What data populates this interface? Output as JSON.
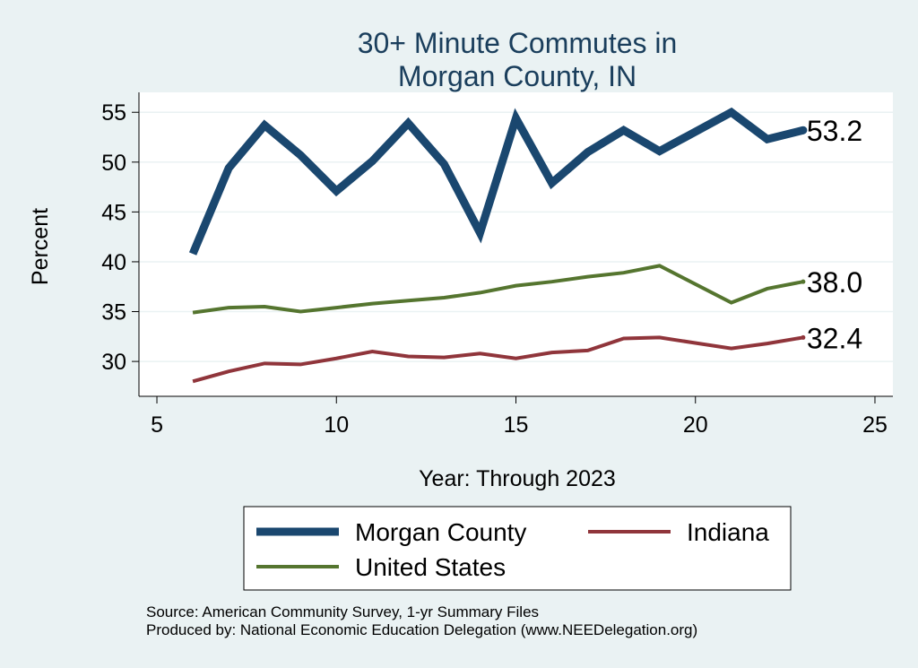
{
  "chart_data": {
    "type": "line",
    "title_lines": [
      "30+ Minute Commutes in",
      "Morgan County, IN"
    ],
    "xlabel": "Year: Through 2023",
    "ylabel": "Percent",
    "xlim": [
      4.5,
      25.5
    ],
    "ylim": [
      26.5,
      57
    ],
    "xticks": [
      5,
      10,
      15,
      20,
      25
    ],
    "yticks": [
      30,
      35,
      40,
      45,
      50,
      55
    ],
    "grid": true,
    "legend_position": "bottom",
    "series": [
      {
        "name": "Morgan County",
        "color": "#1a476f",
        "x": [
          6,
          7,
          8,
          9,
          10,
          11,
          12,
          13,
          14,
          15,
          16,
          17,
          18,
          19,
          21,
          22,
          23
        ],
        "y": [
          40.8,
          49.4,
          53.7,
          50.7,
          47.1,
          50.1,
          53.9,
          49.8,
          42.9,
          54.4,
          47.9,
          51.0,
          53.2,
          51.1,
          55.0,
          52.3,
          53.2
        ],
        "end_label": "53.2"
      },
      {
        "name": "Indiana",
        "color": "#90353b",
        "x": [
          6,
          7,
          8,
          9,
          10,
          11,
          12,
          13,
          14,
          15,
          16,
          17,
          18,
          19,
          21,
          22,
          23
        ],
        "y": [
          28.0,
          29.0,
          29.8,
          29.7,
          30.3,
          31.0,
          30.5,
          30.4,
          30.8,
          30.3,
          30.9,
          31.1,
          32.3,
          32.4,
          31.3,
          31.8,
          32.4
        ],
        "end_label": "32.4"
      },
      {
        "name": "United States",
        "color": "#55752f",
        "x": [
          6,
          7,
          8,
          9,
          10,
          11,
          12,
          13,
          14,
          15,
          16,
          17,
          18,
          19,
          21,
          22,
          23
        ],
        "y": [
          34.9,
          35.4,
          35.5,
          35.0,
          35.4,
          35.8,
          36.1,
          36.4,
          36.9,
          37.6,
          38.0,
          38.5,
          38.9,
          39.6,
          35.9,
          37.3,
          38.0
        ],
        "end_label": "38.0"
      }
    ],
    "source_lines": [
      "Source: American Community Survey, 1-yr Summary Files",
      "Produced by: National Economic Education Delegation (www.NEEDelegation.org)"
    ]
  }
}
